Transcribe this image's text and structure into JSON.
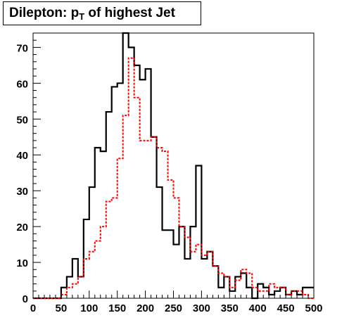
{
  "chart_data": {
    "type": "histogram",
    "title_main": "Dilepton: p",
    "title_sub": "T",
    "title_rest": " of highest Jet",
    "xlabel": "",
    "ylabel": "",
    "xlim": [
      0,
      500
    ],
    "ylim": [
      0,
      74
    ],
    "bin_width": 10,
    "bin_low_edges": [
      0,
      10,
      20,
      30,
      40,
      50,
      60,
      70,
      80,
      90,
      100,
      110,
      120,
      130,
      140,
      150,
      160,
      170,
      180,
      190,
      200,
      210,
      220,
      230,
      240,
      250,
      260,
      270,
      280,
      290,
      300,
      310,
      320,
      330,
      340,
      350,
      360,
      370,
      380,
      390,
      400,
      410,
      420,
      430,
      440,
      450,
      460,
      470,
      480,
      490
    ],
    "x_ticks": [
      0,
      50,
      100,
      150,
      200,
      250,
      300,
      350,
      400,
      450,
      500
    ],
    "y_ticks": [
      0,
      10,
      20,
      30,
      40,
      50,
      60,
      70
    ],
    "grid": false,
    "series": [
      {
        "style": "solid",
        "color": "#000000",
        "values": [
          0,
          0,
          0,
          0,
          0,
          3,
          6,
          11,
          6,
          22,
          31,
          42,
          41,
          52,
          59,
          60,
          74,
          70,
          65,
          61,
          64,
          45,
          31,
          19,
          19,
          15,
          20,
          11,
          20,
          37,
          11,
          13,
          9,
          3,
          6,
          2,
          6,
          7,
          3,
          0,
          4,
          3,
          1,
          2,
          3,
          1,
          2,
          1,
          3,
          3
        ]
      },
      {
        "style": "dashed",
        "color": "#ff0000",
        "values": [
          0,
          0,
          0,
          0,
          0,
          1,
          3,
          4,
          6,
          11,
          13,
          16,
          20,
          27,
          28,
          39,
          51,
          67,
          56,
          44,
          44,
          45,
          42,
          41,
          33,
          28,
          20,
          17,
          13,
          15,
          12,
          13,
          9,
          7,
          6,
          3,
          5,
          8,
          7,
          3,
          2,
          2,
          4,
          3,
          3,
          1,
          2,
          2,
          1,
          0
        ]
      }
    ]
  }
}
